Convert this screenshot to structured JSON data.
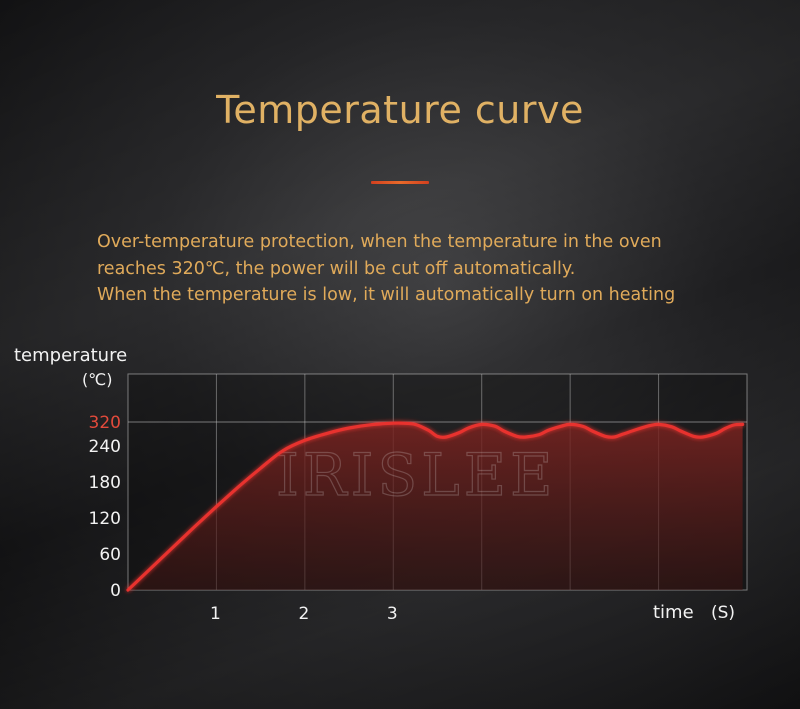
{
  "title": "Temperature curve",
  "description": [
    "Over-temperature protection, when the temperature in the oven",
    "reaches 320℃, the power will be cut off automatically.",
    "When the temperature is low, it will automatically turn on heating"
  ],
  "watermark": "IRISLEE",
  "colors": {
    "title": "#e0b164",
    "description": "#e0aa5a",
    "accent_rule": "#e0552a",
    "curve": "#e8332f",
    "fill": "#6a1f1c",
    "highlight_tick": "#e24a3b"
  },
  "chart_data": {
    "type": "line",
    "title": "",
    "ylabel": "temperature",
    "yunit": "(℃)",
    "xlabel": "time",
    "xunit": "(S)",
    "y_ticks": [
      "0",
      "60",
      "120",
      "180",
      "240",
      "320"
    ],
    "highlight_tick": "320",
    "x_ticks": [
      "1",
      "2",
      "3"
    ],
    "xlim": [
      0,
      7
    ],
    "ylim": [
      0,
      410
    ],
    "grid": true,
    "filled_area": true,
    "series": [
      {
        "x": [
          0,
          0.25,
          0.5,
          0.75,
          1.0,
          1.25,
          1.5,
          1.75,
          2.0,
          2.25,
          2.5,
          2.75,
          3.0,
          3.1,
          3.25,
          3.4,
          3.5,
          3.6,
          3.75,
          3.85,
          4.0,
          4.15,
          4.25,
          4.4,
          4.5,
          4.65,
          4.75,
          4.9,
          5.0,
          5.15,
          5.25,
          5.4,
          5.5,
          5.6,
          5.75,
          5.9,
          6.0,
          6.15,
          6.25,
          6.4,
          6.5,
          6.65,
          6.75,
          6.85,
          6.95
        ],
        "y": [
          0,
          35,
          70,
          105,
          139,
          172,
          203,
          232,
          259,
          282,
          300,
          311,
          316,
          316,
          312,
          292,
          272,
          270,
          285,
          300,
          312,
          306,
          290,
          272,
          270,
          278,
          292,
          306,
          312,
          305,
          290,
          272,
          270,
          280,
          295,
          308,
          312,
          304,
          290,
          272,
          270,
          282,
          298,
          310,
          312
        ]
      }
    ]
  }
}
